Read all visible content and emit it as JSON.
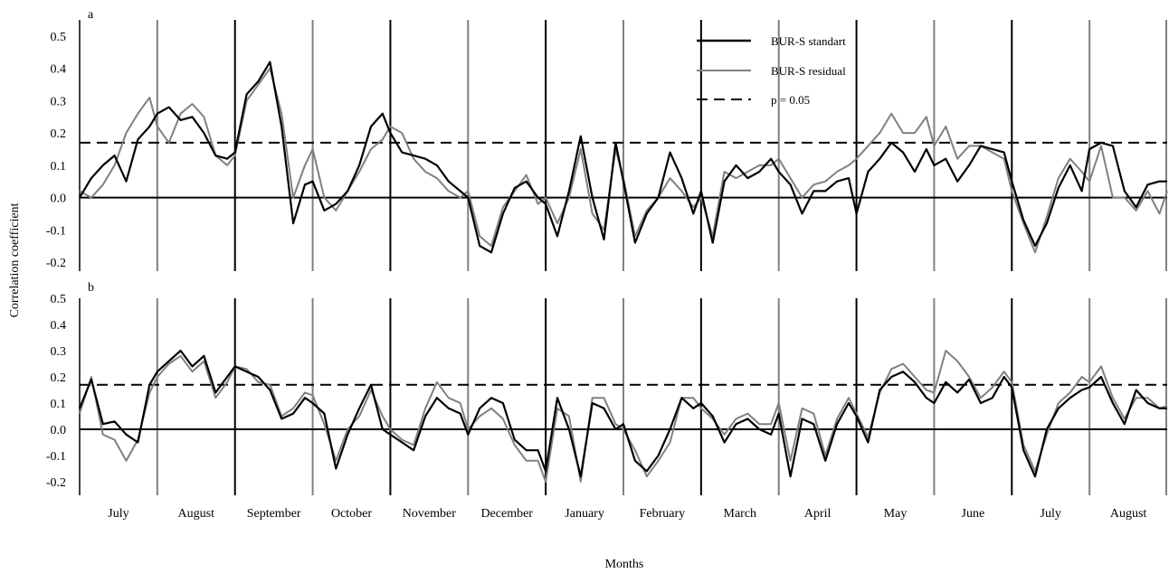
{
  "chart_data": {
    "type": "line",
    "ylabel": "Correlation coefficient",
    "xlabel": "Months",
    "months": [
      "July",
      "August",
      "September",
      "October",
      "November",
      "December",
      "January",
      "February",
      "March",
      "April",
      "May",
      "June",
      "July",
      "August"
    ],
    "yticks": [
      -0.2,
      -0.1,
      0.0,
      0.1,
      0.2,
      0.3,
      0.4,
      0.5
    ],
    "ytick_labels": [
      "-0.2",
      "-0.1",
      "0.0",
      "0.1",
      "0.2",
      "0.3",
      "0.4",
      "0.5"
    ],
    "significance_level": 0.17,
    "legend": {
      "placement": "top-right of panel a",
      "entries": [
        "BUR-S standart",
        "BUR-S residual",
        "p = 0.05"
      ]
    },
    "colors": {
      "standard": "#000000",
      "residual": "#808080",
      "separator_black": "#000000",
      "separator_gray": "#808080"
    },
    "panels": [
      {
        "label": "a",
        "ylim": [
          -0.25,
          0.55
        ],
        "series": [
          {
            "name": "BUR-S standart",
            "x": [
              0,
              0.15,
              0.3,
              0.45,
              0.6,
              0.75,
              0.9,
              1.0,
              1.15,
              1.3,
              1.45,
              1.6,
              1.75,
              1.9,
              2.0,
              2.15,
              2.3,
              2.45,
              2.6,
              2.75,
              2.9,
              3.0,
              3.15,
              3.3,
              3.45,
              3.6,
              3.75,
              3.9,
              4.0,
              4.15,
              4.3,
              4.45,
              4.6,
              4.75,
              4.9,
              5.0,
              5.15,
              5.3,
              5.45,
              5.6,
              5.75,
              5.9,
              6.0,
              6.15,
              6.3,
              6.45,
              6.6,
              6.75,
              6.9,
              7.0,
              7.15,
              7.3,
              7.45,
              7.6,
              7.75,
              7.9,
              8.0,
              8.15,
              8.3,
              8.45,
              8.6,
              8.75,
              8.9,
              9.0,
              9.15,
              9.3,
              9.45,
              9.6,
              9.75,
              9.9,
              10.0,
              10.15,
              10.3,
              10.45,
              10.6,
              10.75,
              10.9,
              11.0,
              11.15,
              11.3,
              11.45,
              11.6,
              11.75,
              11.9,
              12.0,
              12.15,
              12.3,
              12.45,
              12.6,
              12.75,
              12.9,
              13.0,
              13.15,
              13.3,
              13.45,
              13.6,
              13.75,
              13.9,
              14.0
            ],
            "values": [
              0.0,
              0.06,
              0.1,
              0.13,
              0.05,
              0.18,
              0.22,
              0.26,
              0.28,
              0.24,
              0.25,
              0.2,
              0.13,
              0.12,
              0.14,
              0.32,
              0.36,
              0.42,
              0.22,
              -0.08,
              0.04,
              0.05,
              -0.04,
              -0.02,
              0.02,
              0.1,
              0.22,
              0.26,
              0.2,
              0.14,
              0.13,
              0.12,
              0.1,
              0.05,
              0.02,
              0.0,
              -0.15,
              -0.17,
              -0.05,
              0.03,
              0.05,
              0.0,
              -0.02,
              -0.12,
              0.02,
              0.19,
              0.0,
              -0.13,
              0.17,
              0.05,
              -0.14,
              -0.05,
              0.0,
              0.14,
              0.06,
              -0.05,
              0.02,
              -0.14,
              0.05,
              0.1,
              0.06,
              0.08,
              0.12,
              0.08,
              0.04,
              -0.05,
              0.02,
              0.02,
              0.05,
              0.06,
              -0.05,
              0.08,
              0.12,
              0.17,
              0.14,
              0.08,
              0.15,
              0.1,
              0.12,
              0.05,
              0.1,
              0.16,
              0.15,
              0.14,
              0.05,
              -0.07,
              -0.15,
              -0.08,
              0.03,
              0.1,
              0.02,
              0.15,
              0.17,
              0.16,
              0.02,
              -0.03,
              0.04,
              0.05,
              0.05
            ]
          },
          {
            "name": "BUR-S residual",
            "x": [
              0,
              0.15,
              0.3,
              0.45,
              0.6,
              0.75,
              0.9,
              1.0,
              1.15,
              1.3,
              1.45,
              1.6,
              1.75,
              1.9,
              2.0,
              2.15,
              2.3,
              2.45,
              2.6,
              2.75,
              2.9,
              3.0,
              3.15,
              3.3,
              3.45,
              3.6,
              3.75,
              3.9,
              4.0,
              4.15,
              4.3,
              4.45,
              4.6,
              4.75,
              4.9,
              5.0,
              5.15,
              5.3,
              5.45,
              5.6,
              5.75,
              5.9,
              6.0,
              6.15,
              6.3,
              6.45,
              6.6,
              6.75,
              6.9,
              7.0,
              7.15,
              7.3,
              7.45,
              7.6,
              7.75,
              7.9,
              8.0,
              8.15,
              8.3,
              8.45,
              8.6,
              8.75,
              8.9,
              9.0,
              9.15,
              9.3,
              9.45,
              9.6,
              9.75,
              9.9,
              10.0,
              10.15,
              10.3,
              10.45,
              10.6,
              10.75,
              10.9,
              11.0,
              11.15,
              11.3,
              11.45,
              11.6,
              11.75,
              11.9,
              12.0,
              12.15,
              12.3,
              12.45,
              12.6,
              12.75,
              12.9,
              13.0,
              13.15,
              13.3,
              13.45,
              13.6,
              13.75,
              13.9,
              14.0
            ],
            "values": [
              0.02,
              0.0,
              0.04,
              0.1,
              0.2,
              0.26,
              0.31,
              0.22,
              0.17,
              0.26,
              0.29,
              0.25,
              0.13,
              0.1,
              0.13,
              0.3,
              0.35,
              0.4,
              0.26,
              0.0,
              0.1,
              0.15,
              0.0,
              -0.04,
              0.02,
              0.08,
              0.15,
              0.18,
              0.22,
              0.2,
              0.12,
              0.08,
              0.06,
              0.02,
              0.0,
              0.02,
              -0.12,
              -0.15,
              -0.03,
              0.02,
              0.07,
              -0.02,
              0.0,
              -0.08,
              0.0,
              0.15,
              -0.05,
              -0.1,
              0.15,
              0.06,
              -0.12,
              -0.04,
              0.0,
              0.06,
              0.02,
              -0.03,
              0.0,
              -0.12,
              0.08,
              0.06,
              0.08,
              0.1,
              0.1,
              0.12,
              0.06,
              0.0,
              0.04,
              0.05,
              0.08,
              0.1,
              0.12,
              0.16,
              0.2,
              0.26,
              0.2,
              0.2,
              0.25,
              0.16,
              0.22,
              0.12,
              0.16,
              0.16,
              0.14,
              0.12,
              0.02,
              -0.08,
              -0.17,
              -0.06,
              0.06,
              0.12,
              0.08,
              0.05,
              0.16,
              0.0,
              0.0,
              -0.04,
              0.02,
              -0.05,
              0.02
            ]
          }
        ]
      },
      {
        "label": "b",
        "ylim": [
          -0.22,
          0.52
        ],
        "series": [
          {
            "name": "BUR-S standart",
            "x": [
              0,
              0.15,
              0.3,
              0.45,
              0.6,
              0.75,
              0.9,
              1.0,
              1.15,
              1.3,
              1.45,
              1.6,
              1.75,
              1.9,
              2.0,
              2.15,
              2.3,
              2.45,
              2.6,
              2.75,
              2.9,
              3.0,
              3.15,
              3.3,
              3.45,
              3.6,
              3.75,
              3.9,
              4.0,
              4.15,
              4.3,
              4.45,
              4.6,
              4.75,
              4.9,
              5.0,
              5.15,
              5.3,
              5.45,
              5.6,
              5.75,
              5.9,
              6.0,
              6.15,
              6.3,
              6.45,
              6.6,
              6.75,
              6.9,
              7.0,
              7.15,
              7.3,
              7.45,
              7.6,
              7.75,
              7.9,
              8.0,
              8.15,
              8.3,
              8.45,
              8.6,
              8.75,
              8.9,
              9.0,
              9.15,
              9.3,
              9.45,
              9.6,
              9.75,
              9.9,
              10.0,
              10.15,
              10.3,
              10.45,
              10.6,
              10.75,
              10.9,
              11.0,
              11.15,
              11.3,
              11.45,
              11.6,
              11.75,
              11.9,
              12.0,
              12.15,
              12.3,
              12.45,
              12.6,
              12.75,
              12.9,
              13.0,
              13.15,
              13.3,
              13.45,
              13.6,
              13.75,
              13.9,
              14.0
            ],
            "values": [
              0.08,
              0.19,
              0.02,
              0.03,
              -0.02,
              -0.05,
              0.17,
              0.22,
              0.26,
              0.3,
              0.24,
              0.28,
              0.14,
              0.2,
              0.24,
              0.22,
              0.2,
              0.15,
              0.04,
              0.06,
              0.12,
              0.1,
              0.06,
              -0.15,
              -0.02,
              0.08,
              0.17,
              0.0,
              -0.02,
              -0.05,
              -0.08,
              0.05,
              0.12,
              0.08,
              0.06,
              -0.02,
              0.08,
              0.12,
              0.1,
              -0.04,
              -0.08,
              -0.08,
              -0.16,
              0.12,
              0.0,
              -0.18,
              0.1,
              0.08,
              0.0,
              0.02,
              -0.12,
              -0.16,
              -0.1,
              0.0,
              0.12,
              0.08,
              0.1,
              0.05,
              -0.05,
              0.02,
              0.04,
              0.0,
              -0.02,
              0.06,
              -0.18,
              0.04,
              0.02,
              -0.12,
              0.02,
              0.1,
              0.05,
              -0.05,
              0.15,
              0.2,
              0.22,
              0.18,
              0.12,
              0.1,
              0.18,
              0.14,
              0.19,
              0.1,
              0.12,
              0.2,
              0.16,
              -0.08,
              -0.18,
              0.0,
              0.08,
              0.12,
              0.15,
              0.16,
              0.2,
              0.1,
              0.02,
              0.15,
              0.1,
              0.08,
              0.08
            ]
          },
          {
            "name": "BUR-S residual",
            "x": [
              0,
              0.15,
              0.3,
              0.45,
              0.6,
              0.75,
              0.9,
              1.0,
              1.15,
              1.3,
              1.45,
              1.6,
              1.75,
              1.9,
              2.0,
              2.15,
              2.3,
              2.45,
              2.6,
              2.75,
              2.9,
              3.0,
              3.15,
              3.3,
              3.45,
              3.6,
              3.75,
              3.9,
              4.0,
              4.15,
              4.3,
              4.45,
              4.6,
              4.75,
              4.9,
              5.0,
              5.15,
              5.3,
              5.45,
              5.6,
              5.75,
              5.9,
              6.0,
              6.15,
              6.3,
              6.45,
              6.6,
              6.75,
              6.9,
              7.0,
              7.15,
              7.3,
              7.45,
              7.6,
              7.75,
              7.9,
              8.0,
              8.15,
              8.3,
              8.45,
              8.6,
              8.75,
              8.9,
              9.0,
              9.15,
              9.3,
              9.45,
              9.6,
              9.75,
              9.9,
              10.0,
              10.15,
              10.3,
              10.45,
              10.6,
              10.75,
              10.9,
              11.0,
              11.15,
              11.3,
              11.45,
              11.6,
              11.75,
              11.9,
              12.0,
              12.15,
              12.3,
              12.45,
              12.6,
              12.75,
              12.9,
              13.0,
              13.15,
              13.3,
              13.45,
              13.6,
              13.75,
              13.9,
              14.0
            ],
            "values": [
              0.06,
              0.2,
              -0.02,
              -0.04,
              -0.12,
              -0.04,
              0.14,
              0.2,
              0.25,
              0.28,
              0.22,
              0.26,
              0.12,
              0.18,
              0.24,
              0.23,
              0.18,
              0.17,
              0.05,
              0.08,
              0.14,
              0.13,
              0.02,
              -0.12,
              0.0,
              0.05,
              0.15,
              0.05,
              0.0,
              -0.04,
              -0.06,
              0.08,
              0.18,
              0.12,
              0.1,
              0.0,
              0.05,
              0.08,
              0.04,
              -0.06,
              -0.12,
              -0.12,
              -0.2,
              0.08,
              0.05,
              -0.2,
              0.12,
              0.12,
              0.02,
              0.0,
              -0.08,
              -0.18,
              -0.12,
              -0.05,
              0.12,
              0.12,
              0.08,
              0.04,
              -0.02,
              0.04,
              0.06,
              0.02,
              0.02,
              0.1,
              -0.12,
              0.08,
              0.06,
              -0.1,
              0.04,
              0.12,
              0.06,
              -0.03,
              0.14,
              0.23,
              0.25,
              0.2,
              0.15,
              0.14,
              0.3,
              0.26,
              0.2,
              0.12,
              0.16,
              0.22,
              0.18,
              -0.06,
              -0.16,
              -0.02,
              0.1,
              0.14,
              0.2,
              0.18,
              0.24,
              0.12,
              0.04,
              0.12,
              0.12,
              0.08,
              0.09
            ]
          }
        ]
      }
    ]
  }
}
